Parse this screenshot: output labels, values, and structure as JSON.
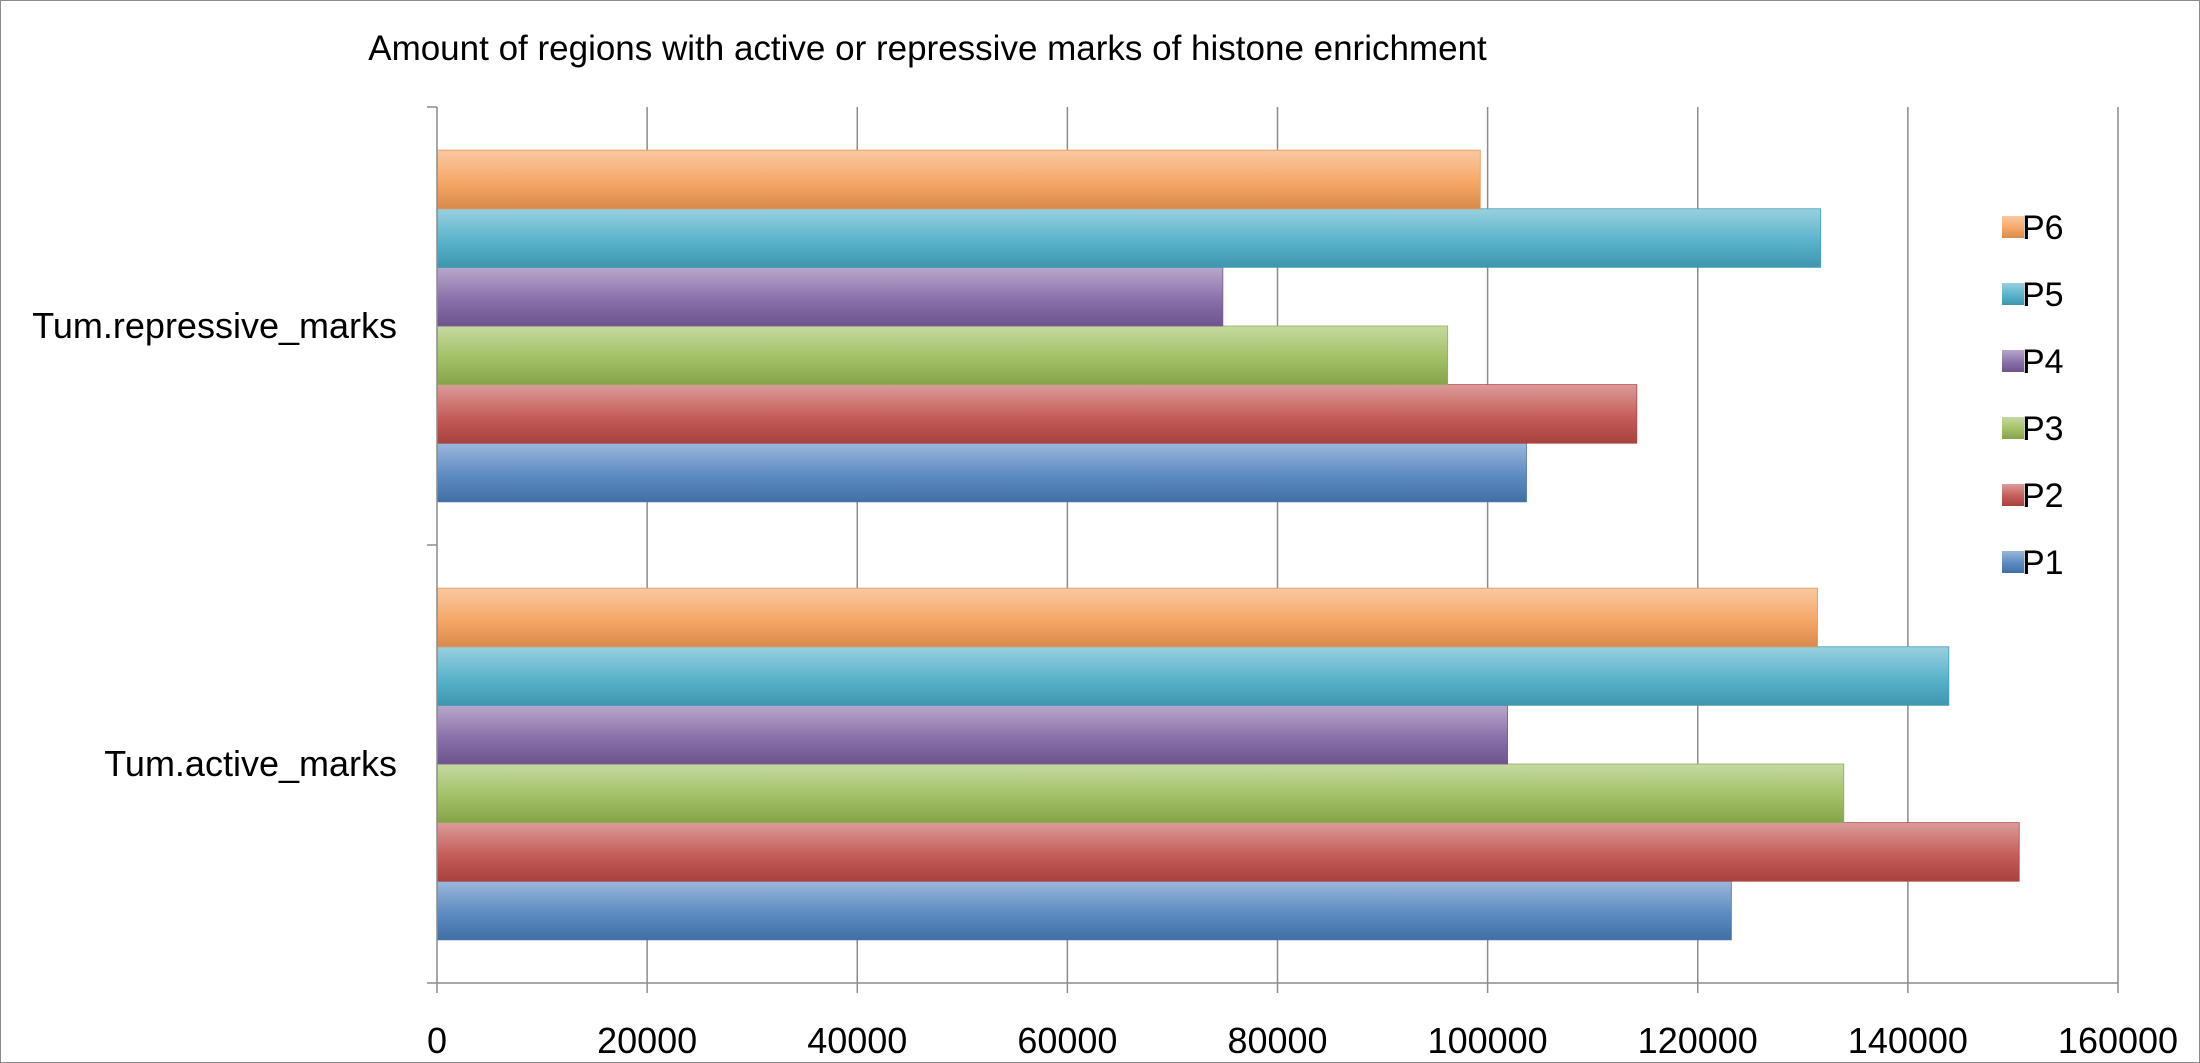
{
  "chart_data": {
    "type": "bar",
    "orientation": "horizontal",
    "title": "Amount of regions with active or repressive marks of histone enrichment",
    "xlabel": "",
    "ylabel": "",
    "categories": [
      "Tum.active_marks",
      "Tum.repressive_marks"
    ],
    "series": [
      {
        "name": "P1",
        "color": "#4a7ebb",
        "values": [
          123200,
          103700
        ]
      },
      {
        "name": "P2",
        "color": "#be4b48",
        "values": [
          150600,
          114200
        ]
      },
      {
        "name": "P3",
        "color": "#98b954",
        "values": [
          133900,
          96200
        ]
      },
      {
        "name": "P4",
        "color": "#7d60a0",
        "values": [
          101900,
          74800
        ]
      },
      {
        "name": "P5",
        "color": "#46aac5",
        "values": [
          143900,
          131700
        ]
      },
      {
        "name": "P6",
        "color": "#f59d56",
        "values": [
          131400,
          99300
        ]
      }
    ],
    "xlim": [
      0,
      160000
    ],
    "xticks": [
      "0",
      "20000",
      "40000",
      "60000",
      "80000",
      "100000",
      "120000",
      "140000",
      "160000"
    ],
    "grid": true,
    "legend_position": "right",
    "legend_order": [
      "P6",
      "P5",
      "P4",
      "P3",
      "P2",
      "P1"
    ]
  }
}
